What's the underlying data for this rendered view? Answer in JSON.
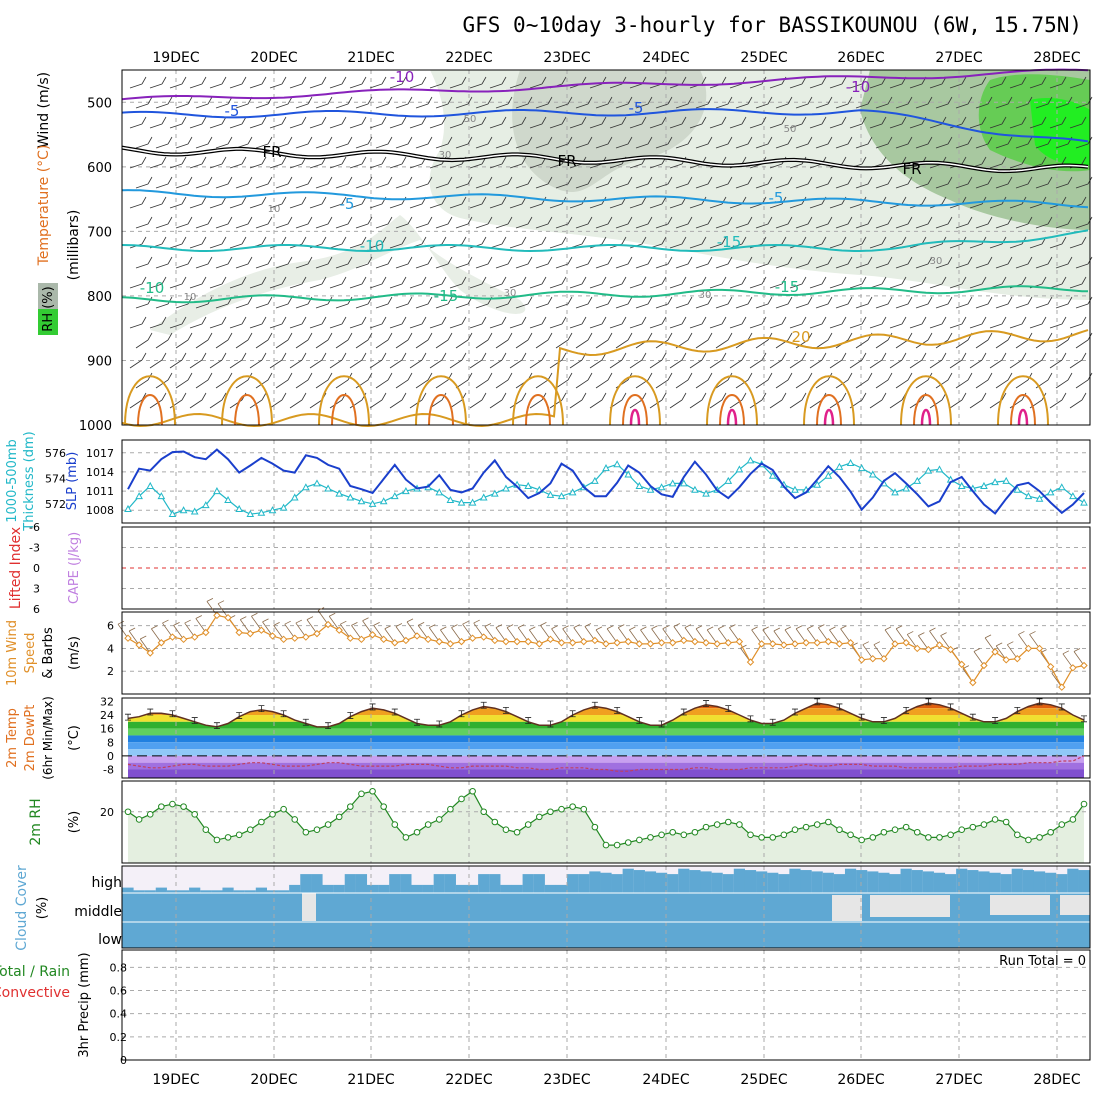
{
  "title": "GFS 0~10day 3-hourly for BASSIKOUNOU (6W, 15.75N)",
  "colors": {
    "rh_green": "#33cc33",
    "rh_dark": "#9aa89a",
    "frame": "#000000",
    "grid": "#aaaaaa",
    "slp": "#1a3fcc",
    "thick": "#22b8c8",
    "wind10": "#e0902a",
    "rh2m": "#228822",
    "cloud": "#5fa8d3",
    "lifted": "#e03030",
    "cape": "#c080e0",
    "temp_orange": "#e07020",
    "magenta": "#e0208a",
    "purple": "#8822bb"
  },
  "chart_data": [
    {
      "id": "upper_air",
      "type": "heatmap",
      "title": "GFS 0~10day 3-hourly for BASSIKOUNOU (6W, 15.75N)",
      "x_ticks": [
        "19DEC",
        "20DEC",
        "21DEC",
        "22DEC",
        "23DEC",
        "24DEC",
        "25DEC",
        "26DEC",
        "27DEC",
        "28DEC"
      ],
      "ylabel": "(millibars)",
      "y_ticks": [
        "500",
        "600",
        "700",
        "800",
        "900",
        "1000"
      ],
      "ylim": [
        1000,
        450
      ],
      "side_labels": [
        "Wind (m/s)",
        "Temperature (°C)",
        "RH (%)"
      ],
      "isotherm_labels": [
        "-10",
        "-10",
        "-5",
        "-5",
        "FR",
        "FR",
        "FR",
        "-5",
        "-5",
        "-10",
        "-10",
        "-15",
        "-15",
        "-15",
        "20"
      ],
      "rh_contour_labels": [
        "50",
        "50",
        "30",
        "10",
        "30",
        "30",
        "10",
        "30"
      ]
    },
    {
      "id": "slp_thickness",
      "type": "line",
      "left_labels": [
        "1000-500mb",
        "Thickness (dm)"
      ],
      "right_label": "SLP (mb)",
      "left_ticks": [
        "576",
        "574",
        "572"
      ],
      "right_ticks": [
        "1017",
        "1014",
        "1011",
        "1008"
      ],
      "ylim_slp": [
        1006,
        1019
      ],
      "ylim_thickness": [
        570.5,
        577
      ],
      "series": [
        {
          "name": "SLP (mb)",
          "values": [
            1011.3,
            1014.5,
            1014.2,
            1016.0,
            1017.1,
            1017.2,
            1016.3,
            1016.0,
            1017.5,
            1016.0,
            1013.9,
            1015.0,
            1016.2,
            1015.3,
            1014.2,
            1013.9,
            1016.6,
            1016.2,
            1015.1,
            1014.5,
            1011.8,
            1011.3,
            1010.7,
            1012.9,
            1015.1,
            1012.8,
            1011.4,
            1011.7,
            1013.5,
            1011.2,
            1010.8,
            1011.4,
            1013.9,
            1015.8,
            1013.2,
            1011.7,
            1009.9,
            1010.7,
            1012.2,
            1015.3,
            1014.2,
            1011.6,
            1010.2,
            1010.2,
            1012.3,
            1015.0,
            1013.9,
            1011.8,
            1010.5,
            1010.1,
            1013.2,
            1015.6,
            1013.6,
            1011.1,
            1009.9,
            1011.6,
            1013.7,
            1015.3,
            1014.3,
            1011.7,
            1009.9,
            1010.8,
            1012.8,
            1014.9,
            1013.2,
            1010.9,
            1008.1,
            1010.0,
            1012.6,
            1013.8,
            1012.2,
            1010.5,
            1008.6,
            1009.4,
            1012.4,
            1013.2,
            1011.0,
            1008.9,
            1007.5,
            1009.8,
            1011.9,
            1012.3,
            1011.0,
            1009.2,
            1007.6,
            1008.9,
            1010.7
          ]
        },
        {
          "name": "1000-500mb Thickness (dm)",
          "values": [
            571.6,
            572.6,
            573.4,
            572.6,
            571.2,
            571.5,
            571.4,
            571.9,
            573.0,
            572.3,
            571.6,
            571.2,
            571.3,
            571.5,
            571.7,
            572.5,
            573.3,
            573.6,
            573.2,
            572.8,
            572.5,
            572.2,
            572.0,
            572.2,
            572.6,
            573.0,
            573.2,
            573.3,
            572.9,
            572.3,
            572.1,
            572.1,
            572.5,
            572.8,
            573.2,
            573.5,
            573.4,
            573.1,
            572.7,
            572.6,
            572.9,
            573.3,
            573.8,
            574.8,
            575.1,
            574.3,
            573.4,
            573.1,
            573.3,
            573.6,
            573.6,
            573.1,
            572.8,
            573.1,
            573.8,
            574.7,
            575.4,
            575.1,
            574.2,
            573.5,
            573.1,
            573.1,
            573.5,
            574.2,
            574.9,
            575.2,
            574.8,
            574.3,
            573.6,
            572.9,
            573.2,
            573.8,
            574.6,
            574.7,
            573.9,
            573.4,
            573.2,
            573.4,
            573.7,
            573.8,
            573.1,
            572.6,
            572.4,
            572.9,
            573.3,
            572.6,
            572.1
          ]
        }
      ]
    },
    {
      "id": "lifted_cape",
      "type": "line",
      "left_labels": [
        "Lifted Index"
      ],
      "right_label": "CAPE (J/kg)",
      "left_ticks": [
        "-6",
        "-3",
        "0",
        "3",
        "6"
      ],
      "ylim": [
        6,
        -6
      ],
      "series": []
    },
    {
      "id": "wind10m",
      "type": "line",
      "left_labels": [
        "10m Wind",
        "Speed",
        "& Barbs"
      ],
      "unit_label": "(m/s)",
      "ticks": [
        "6",
        "4",
        "2"
      ],
      "ylim": [
        0,
        7.2
      ],
      "series": [
        {
          "name": "10m Wind Speed (m/s)",
          "values": [
            4.9,
            4.3,
            3.6,
            4.5,
            5.0,
            4.8,
            5.0,
            5.4,
            6.9,
            6.7,
            5.4,
            5.3,
            5.6,
            5.1,
            4.8,
            4.9,
            5.0,
            5.3,
            6.1,
            5.6,
            4.9,
            4.8,
            5.2,
            4.8,
            4.5,
            4.7,
            5.1,
            4.8,
            4.6,
            4.4,
            4.6,
            4.9,
            5.0,
            4.7,
            4.6,
            4.6,
            4.6,
            4.4,
            4.8,
            4.5,
            4.5,
            4.6,
            4.7,
            4.4,
            4.5,
            4.6,
            4.4,
            4.4,
            4.5,
            4.5,
            4.7,
            4.6,
            4.5,
            4.4,
            4.5,
            4.6,
            2.8,
            4.4,
            4.4,
            4.3,
            4.4,
            4.5,
            4.5,
            4.6,
            4.4,
            4.5,
            3.0,
            3.1,
            3.1,
            4.4,
            4.5,
            4.0,
            3.9,
            4.3,
            3.9,
            2.6,
            1.0,
            2.5,
            3.7,
            3.0,
            3.1,
            4.0,
            4.0,
            2.4,
            0.6,
            2.3,
            2.5
          ]
        }
      ]
    },
    {
      "id": "temp2m",
      "type": "area",
      "left_labels": [
        "2m Temp",
        "2m DewPt",
        "(6hr Min/Max)"
      ],
      "unit_label": "(°C)",
      "ticks": [
        "32",
        "24",
        "16",
        "8",
        "0",
        "-8"
      ],
      "ylim": [
        -13,
        34
      ],
      "series": [
        {
          "name": "2m Temp (°C)",
          "values": [
            22,
            23,
            25,
            25,
            24,
            22,
            20,
            18,
            17,
            19,
            23,
            26,
            27,
            26,
            24,
            21,
            19,
            17,
            17,
            19,
            23,
            26,
            28,
            27,
            25,
            22,
            19,
            18,
            18,
            20,
            24,
            27,
            29,
            28,
            26,
            23,
            20,
            18,
            18,
            20,
            24,
            27,
            29,
            28,
            26,
            23,
            20,
            18,
            18,
            21,
            25,
            28,
            30,
            29,
            27,
            24,
            21,
            19,
            19,
            21,
            25,
            28,
            31,
            30,
            28,
            25,
            22,
            20,
            20,
            22,
            26,
            29,
            31,
            30,
            28,
            25,
            22,
            20,
            20,
            22,
            26,
            29,
            31,
            30,
            28,
            24,
            21
          ]
        },
        {
          "name": "2m DewPt (°C)",
          "values": [
            -5,
            -6,
            -7,
            -7,
            -6,
            -5,
            -5,
            -6,
            -6,
            -6,
            -5,
            -4,
            -4,
            -5,
            -6,
            -6,
            -6,
            -5,
            -4,
            -4,
            -5,
            -6,
            -6,
            -6,
            -6,
            -5,
            -5,
            -5,
            -6,
            -7,
            -7,
            -6,
            -6,
            -6,
            -6,
            -7,
            -7,
            -8,
            -8,
            -7,
            -7,
            -7,
            -8,
            -8,
            -9,
            -9,
            -8,
            -8,
            -8,
            -8,
            -8,
            -7,
            -7,
            -8,
            -8,
            -8,
            -7,
            -7,
            -7,
            -7,
            -6,
            -5,
            -6,
            -6,
            -5,
            -5,
            -5,
            -6,
            -6,
            -6,
            -7,
            -7,
            -7,
            -7,
            -7,
            -6,
            -6,
            -6,
            -5,
            -5,
            -5,
            -4,
            -4,
            -4,
            -3,
            -3,
            0
          ]
        }
      ]
    },
    {
      "id": "rh2m",
      "type": "area",
      "left_labels": [
        "2m RH"
      ],
      "unit_label": "(%)",
      "ticks": [
        "20"
      ],
      "ylim": [
        0,
        32
      ],
      "series": [
        {
          "name": "2m RH (%)",
          "values": [
            20,
            17,
            19,
            22,
            23,
            22,
            19,
            13,
            9,
            10,
            11,
            13,
            16,
            19,
            21,
            17,
            12,
            13,
            15,
            18,
            22,
            27,
            28,
            22,
            15,
            10,
            12,
            15,
            17,
            21,
            25,
            28,
            20,
            16,
            13,
            12,
            15,
            18,
            20,
            21,
            22,
            21,
            14,
            7,
            7,
            8,
            9,
            10,
            11,
            12,
            11,
            12,
            14,
            15,
            16,
            15,
            11,
            10,
            10,
            11,
            13,
            14,
            15,
            16,
            13,
            11,
            9,
            10,
            12,
            13,
            14,
            12,
            10,
            10,
            11,
            13,
            14,
            15,
            17,
            16,
            11,
            9,
            10,
            12,
            15,
            17,
            23
          ]
        }
      ]
    },
    {
      "id": "cloud_cover",
      "type": "bar",
      "left_labels": [
        "Cloud Cover"
      ],
      "unit_label": "(%)",
      "rows": [
        "high",
        "middle",
        "low"
      ]
    },
    {
      "id": "precip",
      "type": "bar",
      "left_labels": [
        "Total / Rain",
        "Convective"
      ],
      "unit_label": "3hr Precip (mm)",
      "ticks": [
        "0.8",
        "0.6",
        "0.4",
        "0.2",
        "0"
      ],
      "ylim": [
        0,
        0.95
      ],
      "run_total": "Run Total = 0",
      "series": [
        {
          "name": "3hr Precip (mm)",
          "values": []
        }
      ]
    }
  ]
}
